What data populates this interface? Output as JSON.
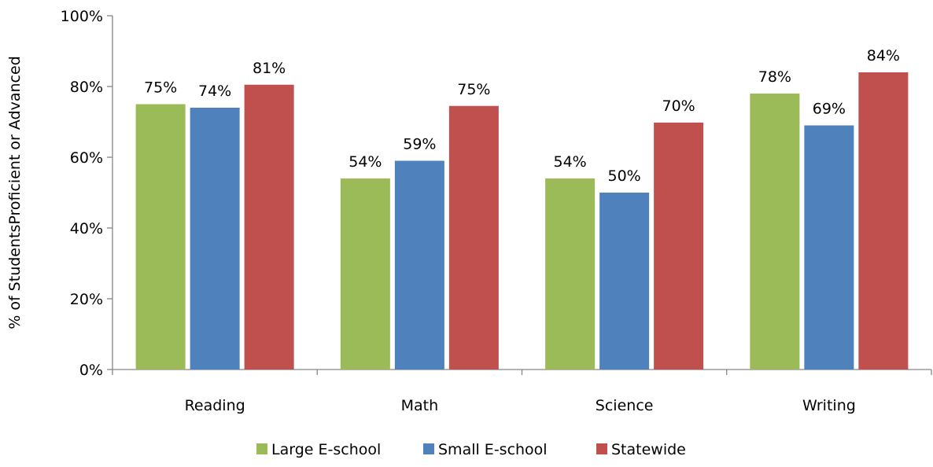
{
  "chart_data": {
    "type": "bar",
    "categories": [
      "Reading",
      "Math",
      "Science",
      "Writing"
    ],
    "series": [
      {
        "name": "Large E-school",
        "color": "#9BBB59",
        "values": [
          75,
          54,
          54,
          78
        ],
        "labels": [
          "75%",
          "54%",
          "54%",
          "78%"
        ]
      },
      {
        "name": "Small E-school",
        "color": "#4F81BD",
        "values": [
          74,
          59,
          50,
          69
        ],
        "labels": [
          "74%",
          "59%",
          "50%",
          "69%"
        ]
      },
      {
        "name": "Statewide",
        "color": "#C0504D",
        "values": [
          80.5,
          74.5,
          69.8,
          84
        ],
        "labels": [
          "81%",
          "75%",
          "70%",
          "84%"
        ]
      }
    ],
    "ylabel": "% of StudentsProficient or Advanced",
    "ylim": [
      0,
      100
    ],
    "yticks": [
      {
        "value": 0,
        "label": "0%"
      },
      {
        "value": 20,
        "label": "20%"
      },
      {
        "value": 40,
        "label": "40%"
      },
      {
        "value": 60,
        "label": "60%"
      },
      {
        "value": 80,
        "label": "80%"
      },
      {
        "value": 100,
        "label": "100%"
      }
    ],
    "legend_position": "bottom",
    "grid": false
  }
}
